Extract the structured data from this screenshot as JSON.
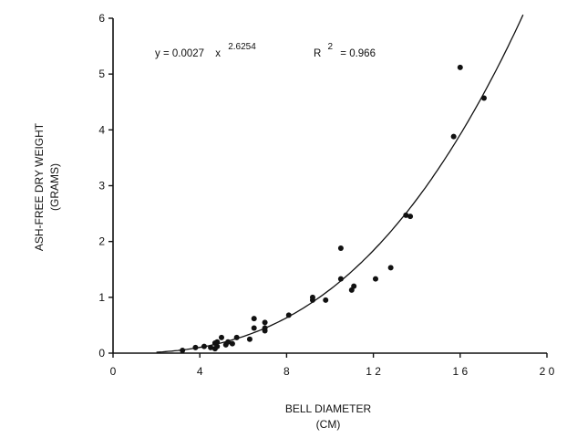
{
  "chart_data": {
    "type": "scatter",
    "title": "",
    "xlabel": "BELL DIAMETER",
    "xlabel_unit": "(CM)",
    "ylabel": "ASH-FREE DRY WEIGHT",
    "ylabel_unit": "(GRAMS)",
    "xlim": [
      0,
      20
    ],
    "ylim": [
      0,
      6
    ],
    "x_ticks": [
      0,
      4,
      8,
      12,
      16,
      20
    ],
    "x_tick_labels": [
      "0",
      "4",
      "8",
      "1 2",
      "1 6",
      "2 0"
    ],
    "y_ticks": [
      0,
      1,
      2,
      3,
      4,
      5,
      6
    ],
    "y_tick_labels": [
      "0",
      "1",
      "2",
      "3",
      "4",
      "5",
      "6"
    ],
    "grid": false,
    "legend": "none",
    "equation": {
      "lhs": "y = 0.0027",
      "base": "x",
      "exponent": "2.6254"
    },
    "r_squared": {
      "lhs": "R",
      "exponent": "2",
      "rhs": "= 0.966"
    },
    "fit": {
      "type": "power",
      "coefficient": 0.0027,
      "exponent": 2.6254,
      "x_range": [
        2,
        18.9
      ]
    },
    "points": [
      {
        "x": 3.2,
        "y": 0.05
      },
      {
        "x": 3.8,
        "y": 0.1
      },
      {
        "x": 4.2,
        "y": 0.12
      },
      {
        "x": 4.5,
        "y": 0.1
      },
      {
        "x": 4.7,
        "y": 0.08
      },
      {
        "x": 4.7,
        "y": 0.18
      },
      {
        "x": 4.8,
        "y": 0.12
      },
      {
        "x": 4.8,
        "y": 0.2
      },
      {
        "x": 5.0,
        "y": 0.28
      },
      {
        "x": 5.2,
        "y": 0.15
      },
      {
        "x": 5.3,
        "y": 0.2
      },
      {
        "x": 5.5,
        "y": 0.17
      },
      {
        "x": 5.7,
        "y": 0.28
      },
      {
        "x": 6.3,
        "y": 0.25
      },
      {
        "x": 6.5,
        "y": 0.45
      },
      {
        "x": 6.5,
        "y": 0.62
      },
      {
        "x": 7.0,
        "y": 0.4
      },
      {
        "x": 7.0,
        "y": 0.45
      },
      {
        "x": 7.0,
        "y": 0.55
      },
      {
        "x": 8.1,
        "y": 0.68
      },
      {
        "x": 9.2,
        "y": 0.95
      },
      {
        "x": 9.2,
        "y": 1.0
      },
      {
        "x": 9.8,
        "y": 0.95
      },
      {
        "x": 10.5,
        "y": 1.33
      },
      {
        "x": 10.5,
        "y": 1.88
      },
      {
        "x": 11.0,
        "y": 1.13
      },
      {
        "x": 11.1,
        "y": 1.2
      },
      {
        "x": 12.1,
        "y": 1.33
      },
      {
        "x": 12.8,
        "y": 1.53
      },
      {
        "x": 13.5,
        "y": 2.47
      },
      {
        "x": 13.7,
        "y": 2.45
      },
      {
        "x": 15.7,
        "y": 3.88
      },
      {
        "x": 16.0,
        "y": 5.12
      },
      {
        "x": 17.1,
        "y": 4.57
      }
    ]
  }
}
